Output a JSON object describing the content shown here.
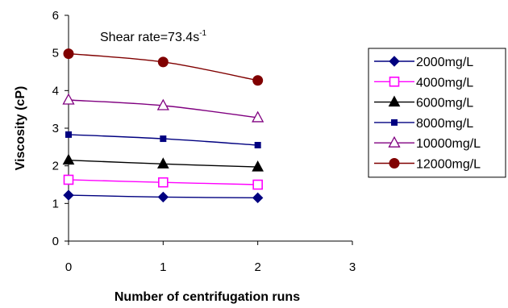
{
  "chart_data": {
    "type": "line",
    "xlabel": "Number of centrifugation runs",
    "ylabel": "Viscosity (cP)",
    "xlim": [
      0,
      3
    ],
    "ylim": [
      0,
      6
    ],
    "x_ticks": [
      "0",
      "1",
      "2",
      "3"
    ],
    "y_ticks": [
      "0",
      "1",
      "2",
      "3",
      "4",
      "5",
      "6"
    ],
    "annotation": {
      "text": "Shear rate=73.4s",
      "superscript": "-1"
    },
    "legend_position": "right",
    "grid": false,
    "x": [
      0,
      1,
      2
    ],
    "series": [
      {
        "name": "2000mg/L",
        "values": [
          1.22,
          1.17,
          1.15
        ],
        "color": "#000080",
        "marker": "diamond"
      },
      {
        "name": "4000mg/L",
        "values": [
          1.63,
          1.56,
          1.5
        ],
        "color": "#ff00ff",
        "marker": "square-open"
      },
      {
        "name": "6000mg/L",
        "values": [
          2.15,
          2.05,
          1.97
        ],
        "color": "#000000",
        "marker": "triangle"
      },
      {
        "name": "8000mg/L",
        "values": [
          2.83,
          2.72,
          2.55
        ],
        "color": "#000080",
        "marker": "square-small"
      },
      {
        "name": "10000mg/L",
        "values": [
          3.75,
          3.6,
          3.28
        ],
        "color": "#800080",
        "marker": "triangle-open"
      },
      {
        "name": "12000mg/L",
        "values": [
          4.98,
          4.76,
          4.27
        ],
        "color": "#800000",
        "marker": "circle"
      }
    ]
  }
}
